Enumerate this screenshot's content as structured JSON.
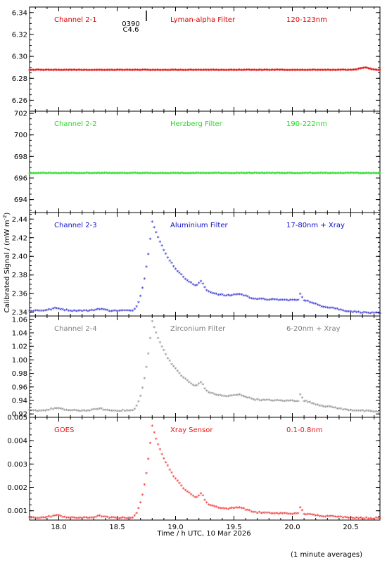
{
  "figure": {
    "xlabel": "Time / h UTC, 10 Mar 2026",
    "ylabel": "Calibrated Signal / (mW m",
    "ylabel_sup": "-2",
    "ylabel_end": ")",
    "footnote": "(1 minute averages)"
  },
  "flare_marker": {
    "time": 18.75,
    "label1": "0390",
    "label2": "C4.6"
  },
  "chart_data": [
    {
      "type": "scatter",
      "name": "Channel 2-1",
      "color": "#dd0000",
      "labels": [
        "Channel 2-1",
        "Lyman-alpha Filter",
        "120-123nm"
      ],
      "xlim": [
        17.75,
        20.75
      ],
      "ylim": [
        6.25,
        6.345
      ],
      "yticks": [
        6.26,
        6.28,
        6.3,
        6.32,
        6.34
      ],
      "ytick_labels": [
        "6.26",
        "6.28",
        "6.30",
        "6.32",
        "6.34"
      ],
      "profile": "flat",
      "baseline": 6.287,
      "bump": 0.002
    },
    {
      "type": "scatter",
      "name": "Channel 2-2",
      "color": "#22dd22",
      "labels": [
        "Channel 2-2",
        "Herzberg Filter",
        "190-222nm"
      ],
      "xlim": [
        17.75,
        20.75
      ],
      "ylim": [
        692.8,
        702.2
      ],
      "yticks": [
        694,
        696,
        698,
        700,
        702
      ],
      "ytick_labels": [
        "694",
        "696",
        "698",
        "700",
        "702"
      ],
      "profile": "flat",
      "baseline": 696.4,
      "bump": 0.0
    },
    {
      "type": "scatter",
      "name": "Channel 2-3",
      "color": "#1111cc",
      "labels": [
        "Channel 2-3",
        "Aluminium Filter",
        "17-80nm + Xray"
      ],
      "xlim": [
        17.75,
        20.75
      ],
      "ylim": [
        2.336,
        2.447
      ],
      "yticks": [
        2.34,
        2.36,
        2.38,
        2.4,
        2.42,
        2.44
      ],
      "ytick_labels": [
        "2.34",
        "2.36",
        "2.38",
        "2.40",
        "2.42",
        "2.44"
      ],
      "profile": "flare",
      "baseline": 2.341,
      "peak": 2.437,
      "post": 2.352,
      "tail": 2.337
    },
    {
      "type": "scatter",
      "name": "Channel 2-4",
      "color": "#808080",
      "labels": [
        "Channel 2-4",
        "Zirconium Filter",
        "6-20nm + Xray"
      ],
      "xlim": [
        17.75,
        20.75
      ],
      "ylim": [
        0.915,
        1.065
      ],
      "yticks": [
        0.92,
        0.94,
        0.96,
        0.98,
        1.0,
        1.02,
        1.04,
        1.06
      ],
      "ytick_labels": [
        "0.92",
        "0.94",
        "0.96",
        "0.98",
        "1.00",
        "1.02",
        "1.04",
        "1.06"
      ],
      "profile": "flare",
      "baseline": 0.924,
      "peak": 1.056,
      "post": 0.938,
      "tail": 0.921
    },
    {
      "type": "scatter",
      "name": "GOES",
      "color": "#ee1111",
      "labels": [
        "GOES",
        "Xray Sensor",
        "0.1-0.8nm"
      ],
      "xlim": [
        17.75,
        20.75
      ],
      "ylim": [
        0.0006,
        0.005
      ],
      "yticks": [
        0.001,
        0.002,
        0.003,
        0.004,
        0.005
      ],
      "ytick_labels": [
        "0.001",
        "0.002",
        "0.003",
        "0.004",
        "0.005"
      ],
      "profile": "flare",
      "baseline": 0.00067,
      "peak": 0.0046,
      "post": 0.00083,
      "tail": 0.00063
    }
  ],
  "xaxis": {
    "ticks": [
      18.0,
      18.5,
      19.0,
      19.5,
      20.0,
      20.5
    ],
    "tick_labels": [
      "18.0",
      "18.5",
      "19.0",
      "19.5",
      "20.0",
      "20.5"
    ],
    "minor_step": 0.1
  }
}
